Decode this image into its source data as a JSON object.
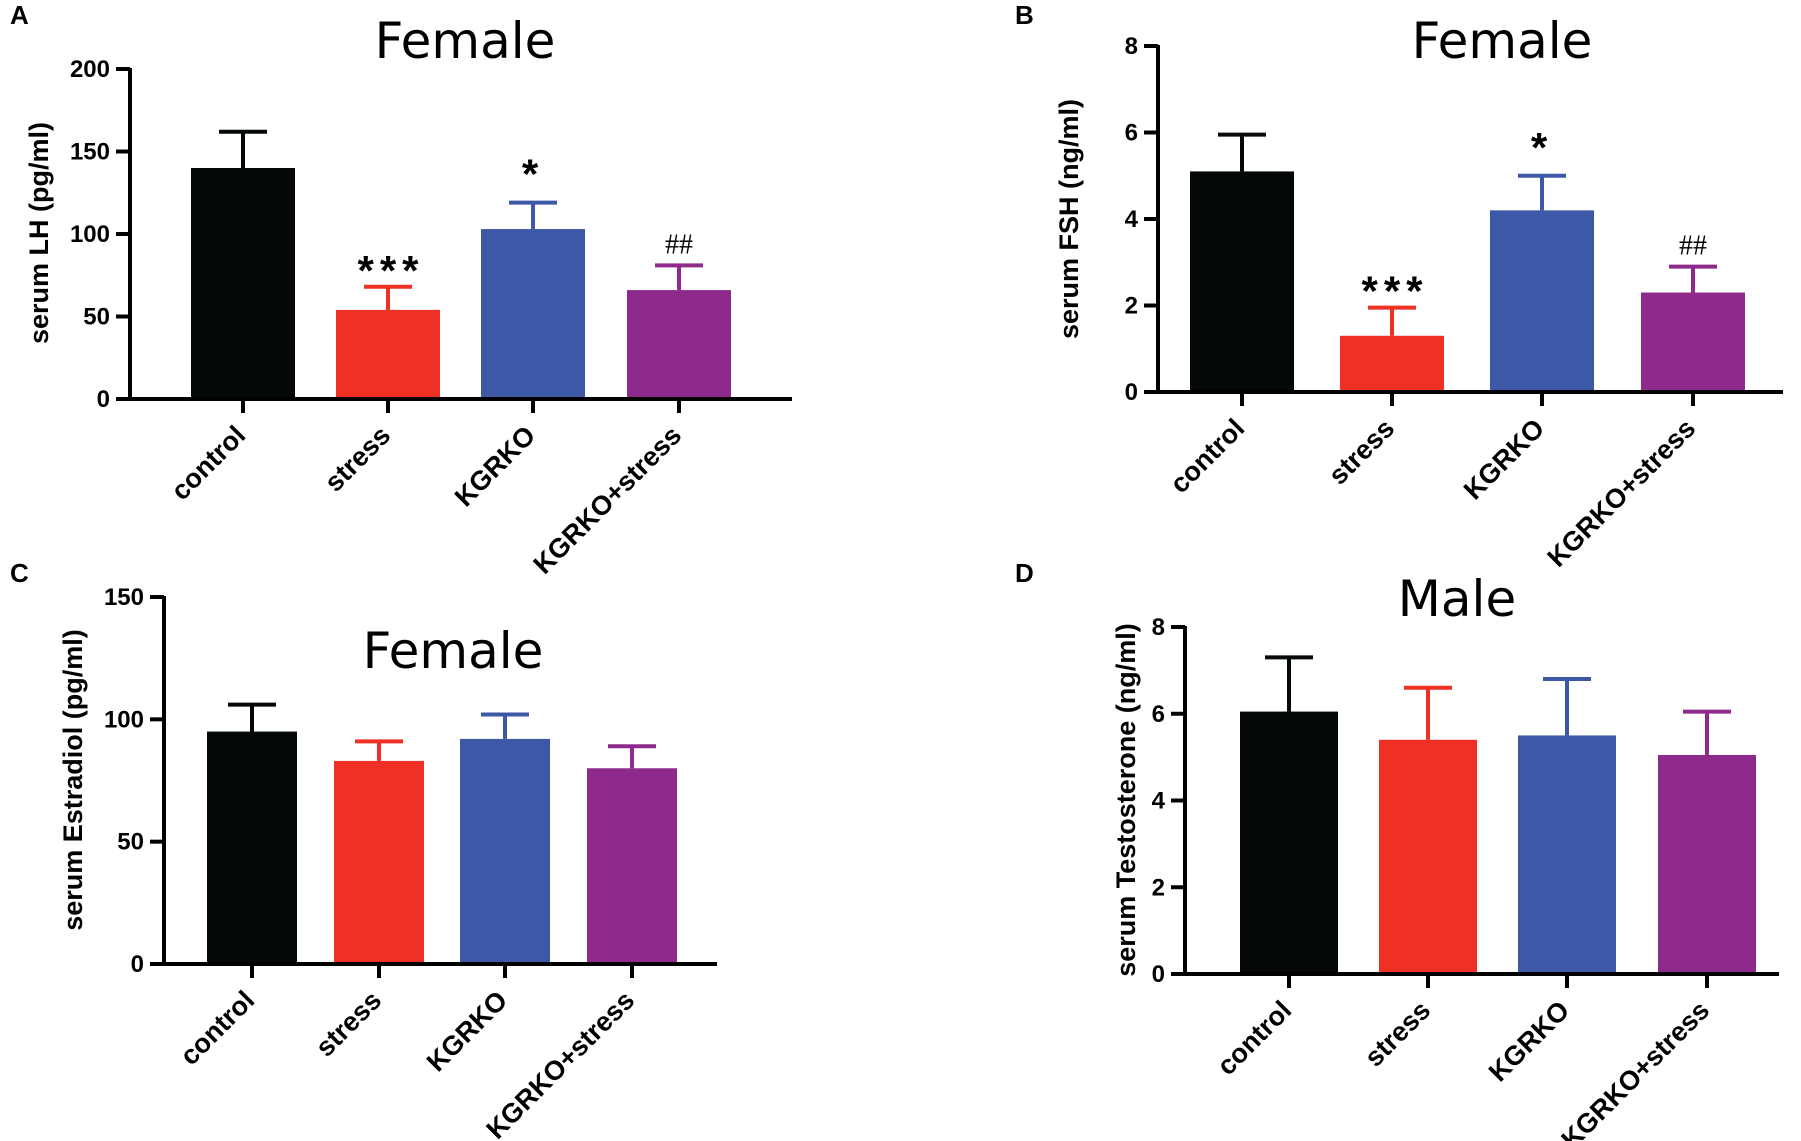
{
  "chart_data": [
    {
      "panel": "A",
      "type": "bar",
      "title": "Female",
      "ylabel": "serum LH (pg/ml)",
      "xlabel": "",
      "ylim": [
        0,
        200
      ],
      "yticks": [
        0,
        50,
        100,
        150,
        200
      ],
      "categories": [
        "control",
        "stress",
        "KGRKO",
        "KGRKO+stress"
      ],
      "values": [
        140,
        54,
        103,
        66
      ],
      "errors": [
        22,
        14,
        16,
        15
      ],
      "colors": [
        "#050808",
        "#ee3124",
        "#3d58a7",
        "#8e2a8c"
      ],
      "annotations": [
        "",
        "***",
        "*",
        "##"
      ]
    },
    {
      "panel": "B",
      "type": "bar",
      "title": "Female",
      "ylabel": "serum FSH (ng/ml)",
      "xlabel": "",
      "ylim": [
        0,
        8
      ],
      "yticks": [
        0,
        2,
        4,
        6,
        8
      ],
      "categories": [
        "control",
        "stress",
        "KGRKO",
        "KGRKO+stress"
      ],
      "values": [
        5.1,
        1.3,
        4.2,
        2.3
      ],
      "errors": [
        0.85,
        0.65,
        0.8,
        0.6
      ],
      "colors": [
        "#050808",
        "#ee3124",
        "#3d58a7",
        "#8e2a8c"
      ],
      "annotations": [
        "",
        "***",
        "*",
        "##"
      ]
    },
    {
      "panel": "C",
      "type": "bar",
      "title": "Female",
      "ylabel": "serum Estradiol (pg/ml)",
      "xlabel": "",
      "ylim": [
        0,
        150
      ],
      "yticks": [
        0,
        50,
        100,
        150
      ],
      "categories": [
        "control",
        "stress",
        "KGRKO",
        "KGRKO+stress"
      ],
      "values": [
        95,
        83,
        92,
        80
      ],
      "errors": [
        11,
        8,
        10,
        9
      ],
      "colors": [
        "#050808",
        "#ee3124",
        "#3d58a7",
        "#8e2a8c"
      ],
      "annotations": [
        "",
        "",
        "",
        ""
      ]
    },
    {
      "panel": "D",
      "type": "bar",
      "title": "Male",
      "ylabel": "serum Testosterone (ng/ml)",
      "xlabel": "",
      "ylim": [
        0,
        8
      ],
      "yticks": [
        0,
        2,
        4,
        6,
        8
      ],
      "categories": [
        "control",
        "stress",
        "KGRKO",
        "KGRKO+stress"
      ],
      "values": [
        6.05,
        5.4,
        5.5,
        5.05
      ],
      "errors": [
        1.25,
        1.2,
        1.3,
        1.0
      ],
      "colors": [
        "#050808",
        "#ee3124",
        "#3d58a7",
        "#8e2a8c"
      ],
      "annotations": [
        "",
        "",
        "",
        ""
      ]
    }
  ]
}
